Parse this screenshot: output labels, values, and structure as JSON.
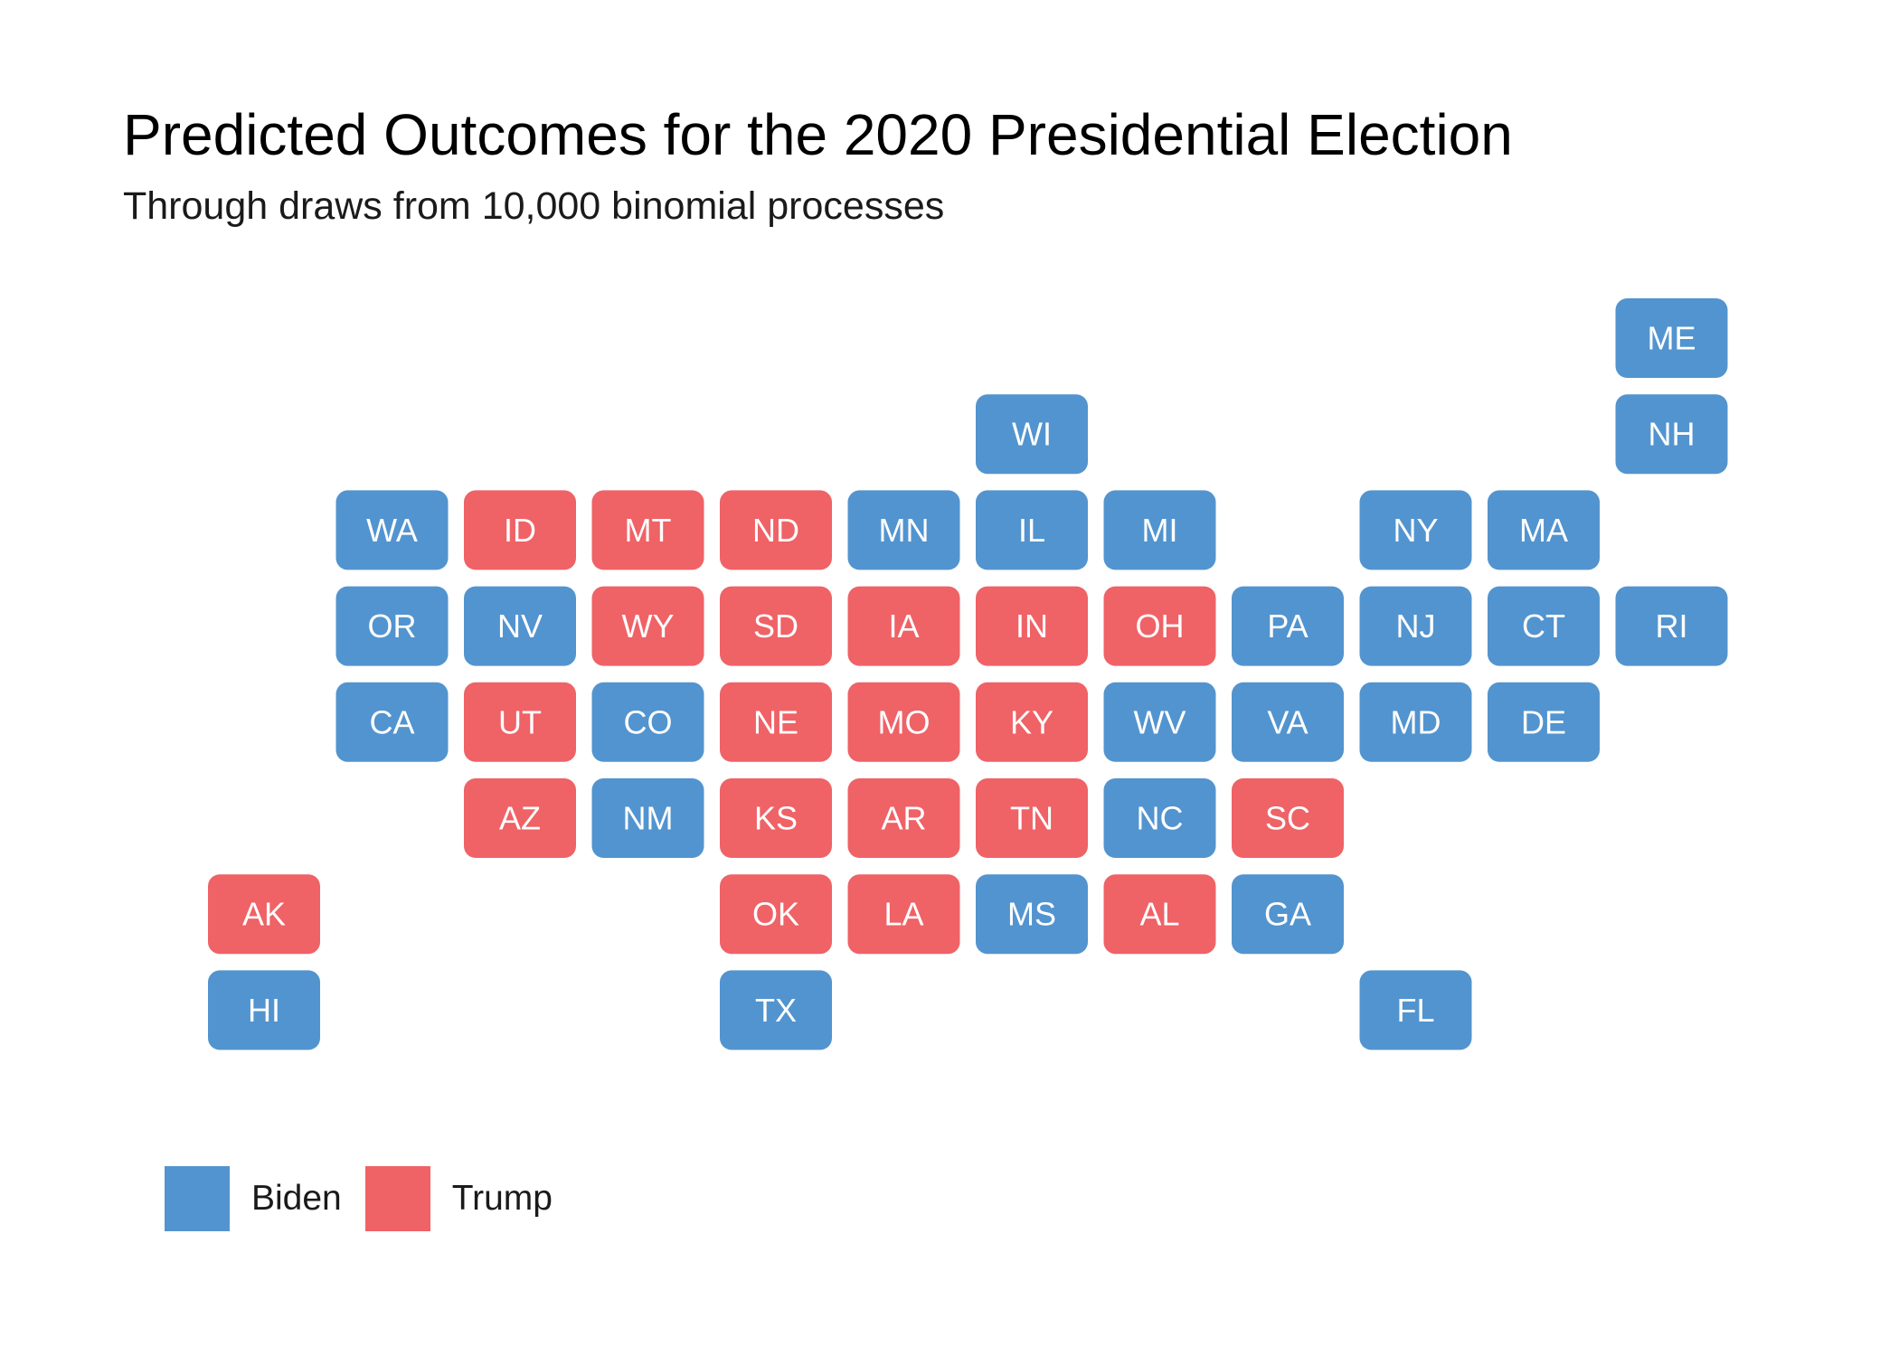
{
  "title": "Predicted Outcomes for the 2020 Presidential Election",
  "subtitle": "Through draws from 10,000 binomial processes",
  "colors": {
    "Biden": "#5294cf",
    "Trump": "#ef6266"
  },
  "legend": {
    "items": [
      {
        "label": "Biden",
        "color": "#5294cf"
      },
      {
        "label": "Trump",
        "color": "#ef6266"
      }
    ]
  },
  "chart_data": {
    "type": "tile-map",
    "grid": {
      "columns": 12,
      "rows": 8
    },
    "legend_position": "bottom-left",
    "tiles": [
      {
        "state": "ME",
        "col": 11,
        "row": 0,
        "winner": "Biden"
      },
      {
        "state": "WI",
        "col": 6,
        "row": 1,
        "winner": "Biden"
      },
      {
        "state": "NH",
        "col": 11,
        "row": 1,
        "winner": "Biden"
      },
      {
        "state": "WA",
        "col": 1,
        "row": 2,
        "winner": "Biden"
      },
      {
        "state": "ID",
        "col": 2,
        "row": 2,
        "winner": "Trump"
      },
      {
        "state": "MT",
        "col": 3,
        "row": 2,
        "winner": "Trump"
      },
      {
        "state": "ND",
        "col": 4,
        "row": 2,
        "winner": "Trump"
      },
      {
        "state": "MN",
        "col": 5,
        "row": 2,
        "winner": "Biden"
      },
      {
        "state": "IL",
        "col": 6,
        "row": 2,
        "winner": "Biden"
      },
      {
        "state": "MI",
        "col": 7,
        "row": 2,
        "winner": "Biden"
      },
      {
        "state": "NY",
        "col": 9,
        "row": 2,
        "winner": "Biden"
      },
      {
        "state": "MA",
        "col": 10,
        "row": 2,
        "winner": "Biden"
      },
      {
        "state": "OR",
        "col": 1,
        "row": 3,
        "winner": "Biden"
      },
      {
        "state": "NV",
        "col": 2,
        "row": 3,
        "winner": "Biden"
      },
      {
        "state": "WY",
        "col": 3,
        "row": 3,
        "winner": "Trump"
      },
      {
        "state": "SD",
        "col": 4,
        "row": 3,
        "winner": "Trump"
      },
      {
        "state": "IA",
        "col": 5,
        "row": 3,
        "winner": "Trump"
      },
      {
        "state": "IN",
        "col": 6,
        "row": 3,
        "winner": "Trump"
      },
      {
        "state": "OH",
        "col": 7,
        "row": 3,
        "winner": "Trump"
      },
      {
        "state": "PA",
        "col": 8,
        "row": 3,
        "winner": "Biden"
      },
      {
        "state": "NJ",
        "col": 9,
        "row": 3,
        "winner": "Biden"
      },
      {
        "state": "CT",
        "col": 10,
        "row": 3,
        "winner": "Biden"
      },
      {
        "state": "RI",
        "col": 11,
        "row": 3,
        "winner": "Biden"
      },
      {
        "state": "CA",
        "col": 1,
        "row": 4,
        "winner": "Biden"
      },
      {
        "state": "UT",
        "col": 2,
        "row": 4,
        "winner": "Trump"
      },
      {
        "state": "CO",
        "col": 3,
        "row": 4,
        "winner": "Biden"
      },
      {
        "state": "NE",
        "col": 4,
        "row": 4,
        "winner": "Trump"
      },
      {
        "state": "MO",
        "col": 5,
        "row": 4,
        "winner": "Trump"
      },
      {
        "state": "KY",
        "col": 6,
        "row": 4,
        "winner": "Trump"
      },
      {
        "state": "WV",
        "col": 7,
        "row": 4,
        "winner": "Biden"
      },
      {
        "state": "VA",
        "col": 8,
        "row": 4,
        "winner": "Biden"
      },
      {
        "state": "MD",
        "col": 9,
        "row": 4,
        "winner": "Biden"
      },
      {
        "state": "DE",
        "col": 10,
        "row": 4,
        "winner": "Biden"
      },
      {
        "state": "AZ",
        "col": 2,
        "row": 5,
        "winner": "Trump"
      },
      {
        "state": "NM",
        "col": 3,
        "row": 5,
        "winner": "Biden"
      },
      {
        "state": "KS",
        "col": 4,
        "row": 5,
        "winner": "Trump"
      },
      {
        "state": "AR",
        "col": 5,
        "row": 5,
        "winner": "Trump"
      },
      {
        "state": "TN",
        "col": 6,
        "row": 5,
        "winner": "Trump"
      },
      {
        "state": "NC",
        "col": 7,
        "row": 5,
        "winner": "Biden"
      },
      {
        "state": "SC",
        "col": 8,
        "row": 5,
        "winner": "Trump"
      },
      {
        "state": "AK",
        "col": 0,
        "row": 6,
        "winner": "Trump"
      },
      {
        "state": "OK",
        "col": 4,
        "row": 6,
        "winner": "Trump"
      },
      {
        "state": "LA",
        "col": 5,
        "row": 6,
        "winner": "Trump"
      },
      {
        "state": "MS",
        "col": 6,
        "row": 6,
        "winner": "Biden"
      },
      {
        "state": "AL",
        "col": 7,
        "row": 6,
        "winner": "Trump"
      },
      {
        "state": "GA",
        "col": 8,
        "row": 6,
        "winner": "Biden"
      },
      {
        "state": "HI",
        "col": 0,
        "row": 7,
        "winner": "Biden"
      },
      {
        "state": "TX",
        "col": 4,
        "row": 7,
        "winner": "Biden"
      },
      {
        "state": "FL",
        "col": 9,
        "row": 7,
        "winner": "Biden"
      }
    ]
  }
}
